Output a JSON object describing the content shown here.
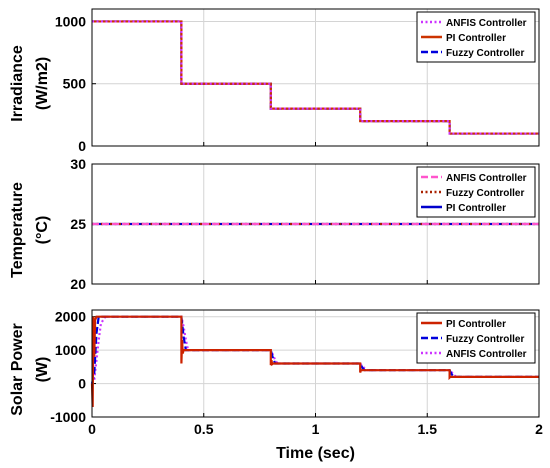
{
  "chart_data": [
    {
      "type": "line",
      "ylabel": [
        "Irradiance",
        "(W/m2)"
      ],
      "xlim": [
        0,
        2
      ],
      "ylim": [
        0,
        1100
      ],
      "yticks": [
        0,
        500,
        1000
      ],
      "xticks": [
        0,
        0.5,
        1,
        1.5,
        2
      ],
      "grid": true,
      "legend_position": "top-right",
      "series": [
        {
          "name": "ANFIS Controller",
          "color": "#cc33ff",
          "style": "dotted",
          "x": [
            0,
            0.4,
            0.4,
            0.8,
            0.8,
            1.2,
            1.2,
            1.6,
            1.6,
            2.0
          ],
          "y": [
            1000,
            1000,
            500,
            500,
            300,
            300,
            200,
            200,
            100,
            100
          ]
        },
        {
          "name": "PI Controller",
          "color": "#cc3300",
          "style": "solid",
          "x": [
            0,
            0.4,
            0.4,
            0.8,
            0.8,
            1.2,
            1.2,
            1.6,
            1.6,
            2.0
          ],
          "y": [
            1000,
            1000,
            500,
            500,
            300,
            300,
            200,
            200,
            100,
            100
          ]
        },
        {
          "name": "Fuzzy Controller",
          "color": "#0000dd",
          "style": "dashed",
          "x": [
            0,
            0.4,
            0.4,
            0.8,
            0.8,
            1.2,
            1.2,
            1.6,
            1.6,
            2.0
          ],
          "y": [
            1000,
            1000,
            500,
            500,
            300,
            300,
            200,
            200,
            100,
            100
          ]
        }
      ]
    },
    {
      "type": "line",
      "ylabel": [
        "Temperature",
        "(°C)"
      ],
      "xlim": [
        0,
        2
      ],
      "ylim": [
        20,
        30
      ],
      "yticks": [
        20,
        25,
        30
      ],
      "xticks": [
        0,
        0.5,
        1,
        1.5,
        2
      ],
      "grid": true,
      "legend_position": "top-right",
      "series": [
        {
          "name": "ANFIS Controller",
          "color": "#ff55cc",
          "style": "dashed",
          "x": [
            0,
            2
          ],
          "y": [
            25,
            25
          ]
        },
        {
          "name": "Fuzzy Controller",
          "color": "#aa2200",
          "style": "dotted",
          "x": [
            0,
            2
          ],
          "y": [
            25,
            25
          ]
        },
        {
          "name": "PI Controller",
          "color": "#0000cc",
          "style": "solid",
          "x": [
            0,
            2
          ],
          "y": [
            25,
            25
          ]
        }
      ]
    },
    {
      "type": "line",
      "ylabel": [
        "Solar Power",
        "(W)"
      ],
      "xlabel": "Time (sec)",
      "xlim": [
        0,
        2
      ],
      "ylim": [
        -1000,
        2200
      ],
      "yticks": [
        -1000,
        0,
        1000,
        2000
      ],
      "xticks": [
        0,
        0.5,
        1,
        1.5,
        2
      ],
      "xtick_labels": [
        "0",
        "0.5",
        "1",
        "1.5",
        "2"
      ],
      "grid": true,
      "legend_position": "top-right",
      "series": [
        {
          "name": "PI Controller",
          "color": "#cc2200",
          "style": "solid",
          "x": [
            0,
            0.003,
            0.006,
            0.01,
            0.014,
            0.02,
            0.03,
            0.4,
            0.4,
            0.403,
            0.406,
            0.41,
            0.8,
            0.8,
            0.803,
            0.806,
            0.81,
            1.2,
            1.2,
            1.203,
            1.21,
            1.6,
            1.6,
            1.603,
            1.61,
            2.0
          ],
          "y": [
            0,
            -700,
            2000,
            800,
            1900,
            2000,
            2000,
            2000,
            600,
            1300,
            900,
            1000,
            1000,
            550,
            700,
            580,
            600,
            600,
            330,
            400,
            400,
            400,
            180,
            200,
            200,
            200
          ]
        },
        {
          "name": "Fuzzy Controller",
          "color": "#0000dd",
          "style": "dashed",
          "x": [
            0,
            0.01,
            0.02,
            0.03,
            0.04,
            0.4,
            0.41,
            0.42,
            0.8,
            0.81,
            0.82,
            1.2,
            1.21,
            1.22,
            1.6,
            1.61,
            1.62,
            2.0
          ],
          "y": [
            0,
            300,
            1500,
            2000,
            2000,
            2000,
            1400,
            1000,
            1000,
            750,
            600,
            600,
            470,
            400,
            400,
            270,
            200,
            200
          ]
        },
        {
          "name": "ANFIS Controller",
          "color": "#cc33ff",
          "style": "dotted",
          "x": [
            0,
            0.01,
            0.02,
            0.03,
            0.04,
            0.06,
            0.4,
            0.41,
            0.42,
            0.43,
            0.8,
            0.81,
            0.82,
            0.83,
            1.2,
            1.21,
            1.22,
            1.23,
            1.6,
            1.61,
            1.62,
            1.63,
            2.0
          ],
          "y": [
            0,
            100,
            700,
            1300,
            1800,
            2000,
            2000,
            1700,
            1300,
            1000,
            1000,
            850,
            700,
            600,
            600,
            520,
            450,
            400,
            400,
            330,
            250,
            200,
            200
          ]
        }
      ]
    }
  ]
}
